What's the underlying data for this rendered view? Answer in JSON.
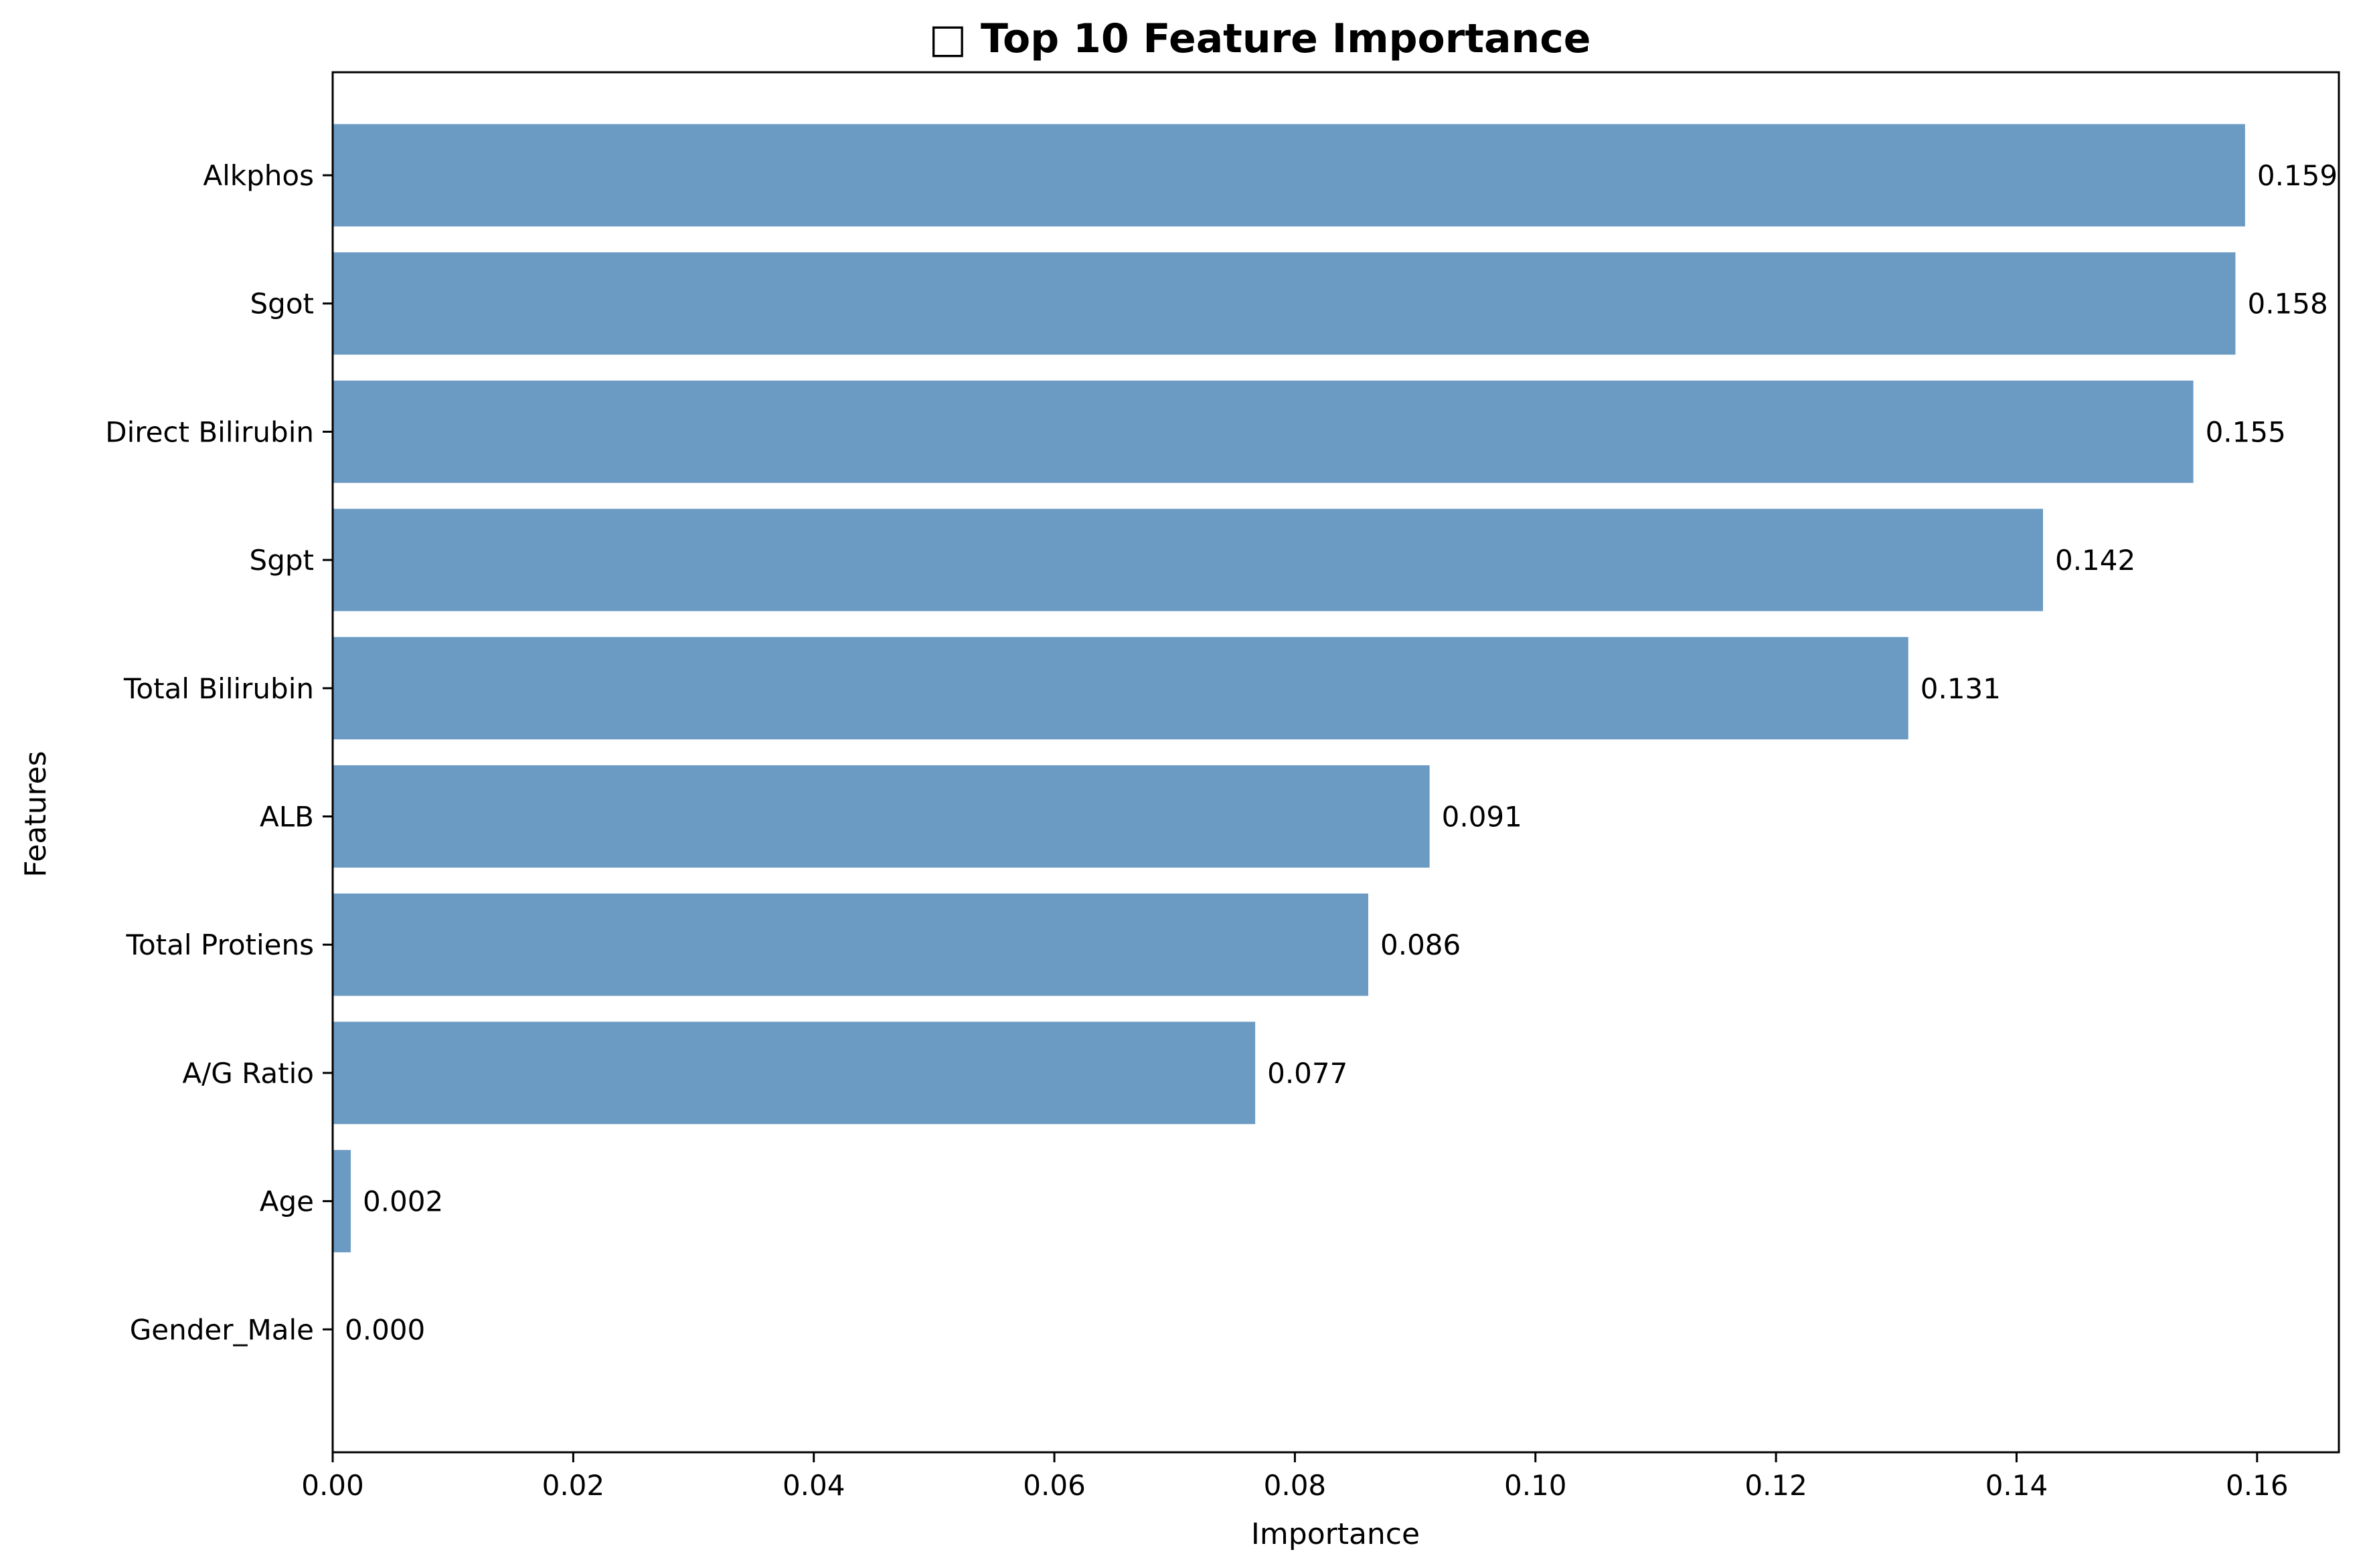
{
  "chart_data": {
    "type": "bar",
    "orientation": "horizontal",
    "title": "□ Top 10 Feature Importance",
    "xlabel": "Importance",
    "ylabel": "Features",
    "xlim": [
      0,
      0.1668
    ],
    "xticks": [
      0.0,
      0.02,
      0.04,
      0.06,
      0.08,
      0.1,
      0.12,
      0.14,
      0.16
    ],
    "xtick_labels": [
      "0.00",
      "0.02",
      "0.04",
      "0.06",
      "0.08",
      "0.10",
      "0.12",
      "0.14",
      "0.16"
    ],
    "grid": false,
    "bar_color": "#6b9bc3",
    "categories": [
      "Gender_Male",
      "Age",
      "A/G Ratio",
      "Total Protiens",
      "ALB",
      "Total Bilirubin",
      "Sgpt",
      "Direct Bilirubin",
      "Sgot",
      "Alkphos"
    ],
    "values": [
      0.0,
      0.0015,
      0.0767,
      0.0861,
      0.0912,
      0.131,
      0.1422,
      0.1547,
      0.1582,
      0.159
    ],
    "value_labels": [
      "0.000",
      "0.002",
      "0.077",
      "0.086",
      "0.091",
      "0.131",
      "0.142",
      "0.155",
      "0.158",
      "0.159"
    ]
  }
}
